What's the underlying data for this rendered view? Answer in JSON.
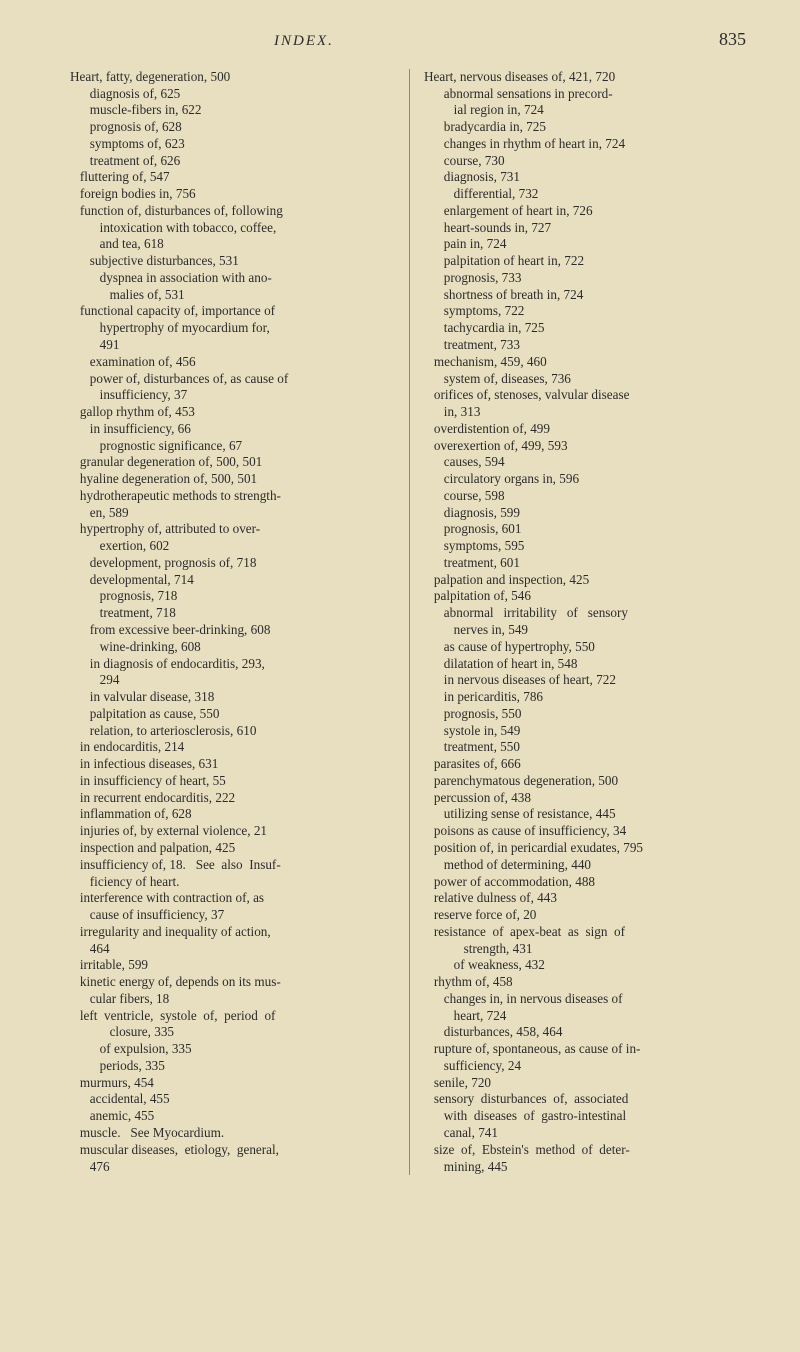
{
  "header": {
    "title": "INDEX.",
    "pageNumber": "835"
  },
  "leftColumn": {
    "text": "Heart, fatty, degeneration, 500\n      diagnosis of, 625\n      muscle-fibers in, 622\n      prognosis of, 628\n      symptoms of, 623\n      treatment of, 626\n   fluttering of, 547\n   foreign bodies in, 756\n   function of, disturbances of, following\n         intoxication with tobacco, coffee,\n         and tea, 618\n      subjective disturbances, 531\n         dyspnea in association with ano-\n            malies of, 531\n   functional capacity of, importance of\n         hypertrophy of myocardium for,\n         491\n      examination of, 456\n      power of, disturbances of, as cause of\n         insufficiency, 37\n   gallop rhythm of, 453\n      in insufficiency, 66\n         prognostic significance, 67\n   granular degeneration of, 500, 501\n   hyaline degeneration of, 500, 501\n   hydrotherapeutic methods to strength-\n      en, 589\n   hypertrophy of, attributed to over-\n         exertion, 602\n      development, prognosis of, 718\n      developmental, 714\n         prognosis, 718\n         treatment, 718\n      from excessive beer-drinking, 608\n         wine-drinking, 608\n      in diagnosis of endocarditis, 293,\n         294\n      in valvular disease, 318\n      palpitation as cause, 550\n      relation, to arteriosclerosis, 610\n   in endocarditis, 214\n   in infectious diseases, 631\n   in insufficiency of heart, 55\n   in recurrent endocarditis, 222\n   inflammation of, 628\n   injuries of, by external violence, 21\n   inspection and palpation, 425\n   insufficiency of, 18.   See  also  Insuf-\n      ficiency of heart.\n   interference with contraction of, as\n      cause of insufficiency, 37\n   irregularity and inequality of action,\n      464\n   irritable, 599\n   kinetic energy of, depends on its mus-\n      cular fibers, 18\n   left  ventricle,  systole  of,  period  of\n            closure, 335\n         of expulsion, 335\n         periods, 335\n   murmurs, 454\n      accidental, 455\n      anemic, 455\n   muscle.   See Myocardium.\n   muscular diseases,  etiology,  general,\n      476"
  },
  "rightColumn": {
    "text": "Heart, nervous diseases of, 421, 720\n      abnormal sensations in precord-\n         ial region in, 724\n      bradycardia in, 725\n      changes in rhythm of heart in, 724\n      course, 730\n      diagnosis, 731\n         differential, 732\n      enlargement of heart in, 726\n      heart-sounds in, 727\n      pain in, 724\n      palpitation of heart in, 722\n      prognosis, 733\n      shortness of breath in, 724\n      symptoms, 722\n      tachycardia in, 725\n      treatment, 733\n   mechanism, 459, 460\n      system of, diseases, 736\n   orifices of, stenoses, valvular disease\n      in, 313\n   overdistention of, 499\n   overexertion of, 499, 593\n      causes, 594\n      circulatory organs in, 596\n      course, 598\n      diagnosis, 599\n      prognosis, 601\n      symptoms, 595\n      treatment, 601\n   palpation and inspection, 425\n   palpitation of, 546\n      abnormal   irritability   of   sensory\n         nerves in, 549\n      as cause of hypertrophy, 550\n      dilatation of heart in, 548\n      in nervous diseases of heart, 722\n      in pericarditis, 786\n      prognosis, 550\n      systole in, 549\n      treatment, 550\n   parasites of, 666\n   parenchymatous degeneration, 500\n   percussion of, 438\n      utilizing sense of resistance, 445\n   poisons as cause of insufficiency, 34\n   position of, in pericardial exudates, 795\n      method of determining, 440\n   power of accommodation, 488\n   relative dulness of, 443\n   reserve force of, 20\n   resistance  of  apex-beat  as  sign  of\n            strength, 431\n         of weakness, 432\n   rhythm of, 458\n      changes in, in nervous diseases of\n         heart, 724\n      disturbances, 458, 464\n   rupture of, spontaneous, as cause of in-\n      sufficiency, 24\n   senile, 720\n   sensory  disturbances  of,  associated\n      with  diseases  of  gastro-intestinal\n      canal, 741\n   size  of,  Ebstein's  method  of  deter-\n      mining, 445"
  }
}
